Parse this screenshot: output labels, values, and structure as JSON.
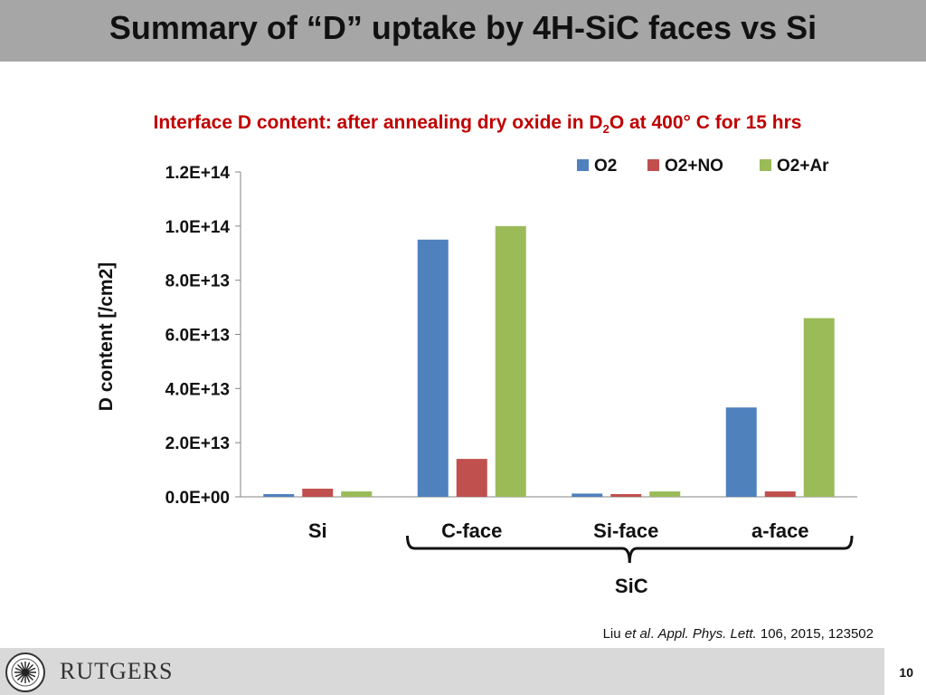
{
  "slide": {
    "title": "Summary of “D” uptake by 4H-SiC faces vs Si",
    "citation": {
      "prefix": "Liu ",
      "etal": "et al",
      "mid": ". ",
      "journal": "Appl. Phys. Lett.",
      "suffix": " 106, 2015, 123502"
    },
    "page_number": "10",
    "logo_text": "RUTGERS"
  },
  "chart_subtitle": {
    "part1": "Interface D content: after annealing dry oxide in D",
    "sub": "2",
    "part2": "O at 400° C for 15 hrs"
  },
  "chart_data": {
    "type": "bar",
    "title": "Interface D content: after annealing dry oxide in D2O at 400° C for 15 hrs",
    "ylabel": "D content [/cm2]",
    "xlabel": "",
    "categories": [
      "Si",
      "C-face",
      "Si-face",
      "a-face"
    ],
    "group_label": "SiC",
    "grouped_categories": [
      "C-face",
      "Si-face",
      "a-face"
    ],
    "ylim": [
      0,
      120000000000000.0
    ],
    "yticks": [
      0,
      20000000000000.0,
      40000000000000.0,
      60000000000000.0,
      80000000000000.0,
      100000000000000.0,
      120000000000000.0
    ],
    "ytick_labels": [
      "0.0E+00",
      "2.0E+13",
      "4.0E+13",
      "6.0E+13",
      "8.0E+13",
      "1.0E+14",
      "1.2E+14"
    ],
    "legend_position": "top-right",
    "grid": false,
    "series": [
      {
        "name": "O2",
        "color": "#4f81bd",
        "values": [
          1000000000000.0,
          95000000000000.0,
          1200000000000.0,
          33000000000000.0
        ]
      },
      {
        "name": "O2+NO",
        "color": "#c0504d",
        "values": [
          3000000000000.0,
          14000000000000.0,
          1000000000000.0,
          2000000000000.0
        ]
      },
      {
        "name": "O2+Ar",
        "color": "#9bbb59",
        "values": [
          2000000000000.0,
          100000000000000.0,
          2000000000000.0,
          66000000000000.0
        ]
      }
    ]
  }
}
